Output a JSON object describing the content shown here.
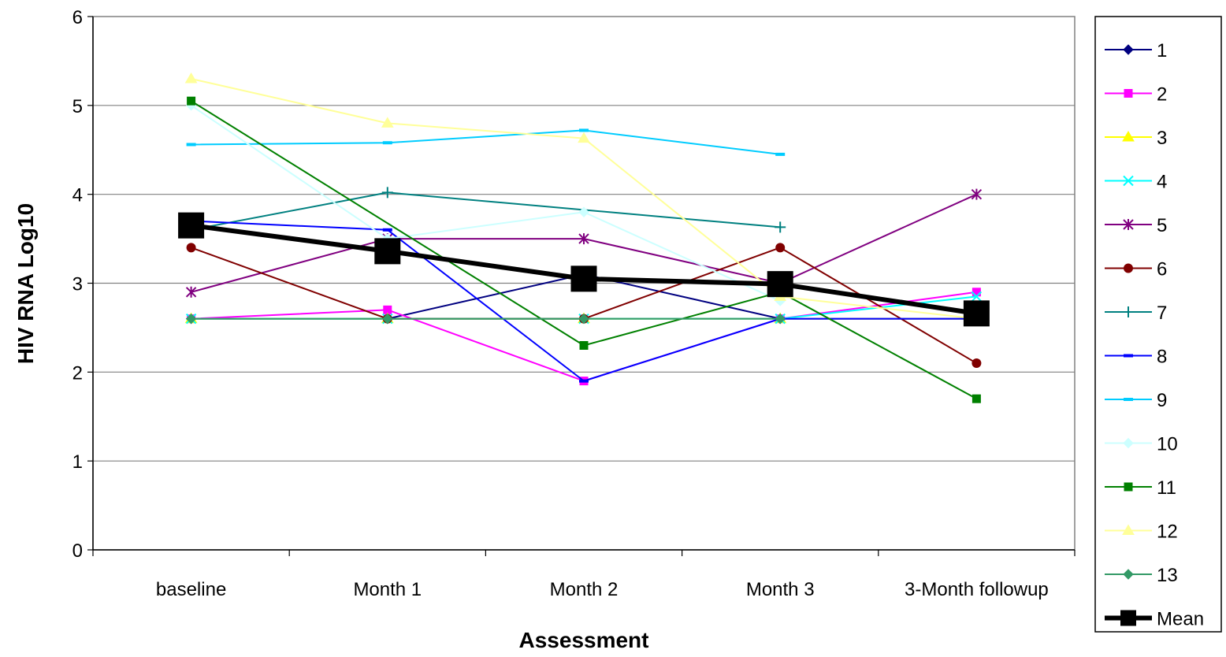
{
  "chart_data": {
    "type": "line",
    "title": "",
    "xlabel": "Assessment",
    "ylabel": "HIV RNA Log10",
    "ylim": [
      0,
      6
    ],
    "yticks": [
      "0",
      "1",
      "2",
      "3",
      "4",
      "5",
      "6"
    ],
    "categories": [
      "baseline",
      "Month 1",
      "Month 2",
      "Month 3",
      "3-Month followup"
    ],
    "grid": "horizontal",
    "legend_position": "right",
    "series": [
      {
        "name": "1",
        "color": "#000080",
        "marker": "diamond",
        "values": [
          2.6,
          2.6,
          3.1,
          2.6,
          2.6
        ]
      },
      {
        "name": "2",
        "color": "#FF00FF",
        "marker": "square",
        "values": [
          2.6,
          2.7,
          1.9,
          2.6,
          2.9
        ]
      },
      {
        "name": "3",
        "color": "#FFFF00",
        "marker": "triangle",
        "values": [
          2.6,
          2.6,
          2.6,
          2.6,
          2.6
        ]
      },
      {
        "name": "4",
        "color": "#00FFFF",
        "marker": "x",
        "values": [
          2.6,
          2.6,
          2.6,
          2.6,
          2.85
        ]
      },
      {
        "name": "5",
        "color": "#800080",
        "marker": "star",
        "values": [
          2.9,
          3.5,
          3.5,
          3.0,
          4.0
        ]
      },
      {
        "name": "6",
        "color": "#800000",
        "marker": "circle",
        "values": [
          3.4,
          2.6,
          2.6,
          3.4,
          2.1
        ]
      },
      {
        "name": "7",
        "color": "#008080",
        "marker": "plus",
        "values": [
          3.6,
          4.02,
          null,
          3.63,
          null
        ]
      },
      {
        "name": "8",
        "color": "#0000FF",
        "marker": "dash",
        "values": [
          3.7,
          3.6,
          1.9,
          2.6,
          2.6
        ]
      },
      {
        "name": "9",
        "color": "#00CCFF",
        "marker": "dash",
        "values": [
          4.56,
          4.58,
          4.72,
          4.45,
          null
        ]
      },
      {
        "name": "10",
        "color": "#CCFFFF",
        "marker": "diamond",
        "values": [
          5.0,
          3.5,
          3.8,
          2.8,
          null
        ]
      },
      {
        "name": "11",
        "color": "#008000",
        "marker": "square",
        "values": [
          5.05,
          null,
          2.3,
          2.9,
          1.7
        ]
      },
      {
        "name": "12",
        "color": "#FFFF99",
        "marker": "triangle",
        "values": [
          5.3,
          4.8,
          4.63,
          2.85,
          2.6
        ]
      },
      {
        "name": "13",
        "color": "#339966",
        "marker": "diamond",
        "values": [
          2.6,
          2.6,
          2.6,
          2.6,
          null
        ]
      },
      {
        "name": "Mean",
        "color": "#000000",
        "marker": "bigsquare",
        "values": [
          3.65,
          3.36,
          3.05,
          2.99,
          2.66
        ]
      }
    ]
  }
}
